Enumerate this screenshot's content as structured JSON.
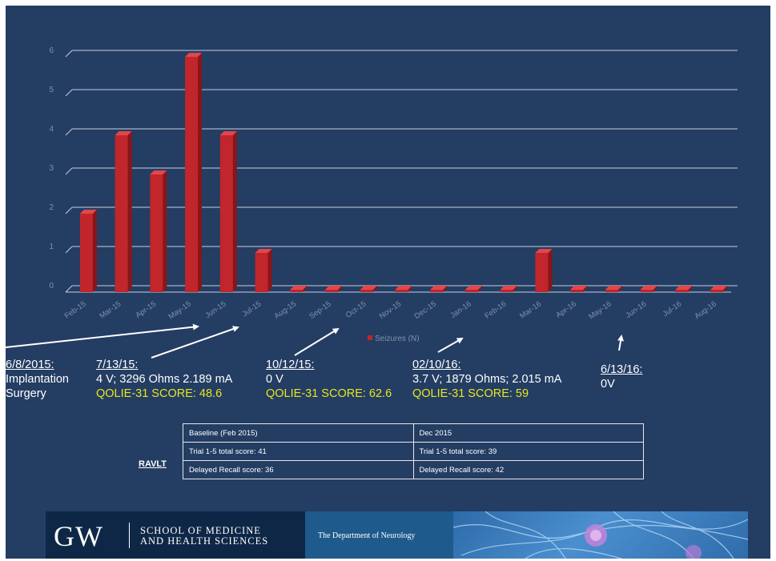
{
  "chart_data": {
    "type": "bar",
    "categories": [
      "Feb-15",
      "Mar-15",
      "Apr-15",
      "May-15",
      "Jun-15",
      "Jul-15",
      "Aug-15",
      "Sep-15",
      "Oct-15",
      "Nov-15",
      "Dec-15",
      "Jan-16",
      "Feb-16",
      "Mar-16",
      "Apr-16",
      "May-16",
      "Jun-16",
      "Jul-16",
      "Aug-16"
    ],
    "series": [
      {
        "name": "Seizures (N)",
        "values": [
          2,
          4,
          3,
          6,
          4,
          1,
          0,
          0,
          0,
          0,
          0,
          0,
          0,
          1,
          0,
          0,
          0,
          0,
          0
        ]
      }
    ],
    "y_ticks": [
      "0",
      "1",
      "2",
      "3",
      "4",
      "5",
      "6"
    ],
    "ylim": [
      0,
      6
    ],
    "grid": true,
    "legend_position": "bottom",
    "colors": {
      "bar": "#c0262b",
      "bar_top": "#e2474b",
      "bar_side": "#8a1518",
      "grid": "#c8d0dc",
      "background": "#243d63"
    }
  },
  "annotations": [
    {
      "date": "6/8/2015:",
      "lines": [
        "Implantation",
        "Surgery"
      ],
      "score": ""
    },
    {
      "date": "7/13/15:",
      "lines": [
        "4 V; 3296 Ohms 2.189 mA"
      ],
      "score": "QOLIE-31 SCORE: 48.6"
    },
    {
      "date": "10/12/15:",
      "lines": [
        "0 V"
      ],
      "score": "QOLIE-31 SCORE: 62.6"
    },
    {
      "date": "02/10/16:",
      "lines": [
        "3.7 V; 1879 Ohms; 2.015 mA"
      ],
      "score": "QOLIE-31 SCORE: 59"
    },
    {
      "date": "6/13/16:",
      "lines": [
        "0V"
      ],
      "score": ""
    }
  ],
  "ravlt": {
    "label": "RAVLT",
    "headers": [
      "Baseline (Feb 2015)",
      "Dec 2015"
    ],
    "rows": [
      [
        "Trial 1-5 total score: 41",
        "Trial 1-5 total score: 39"
      ],
      [
        "Delayed Recall score: 36",
        "Delayed Recall score: 42"
      ]
    ]
  },
  "footer": {
    "logo": "GW",
    "school_line1": "SCHOOL OF MEDICINE",
    "school_line2": "AND HEALTH SCIENCES",
    "department": "The Department of Neurology"
  }
}
